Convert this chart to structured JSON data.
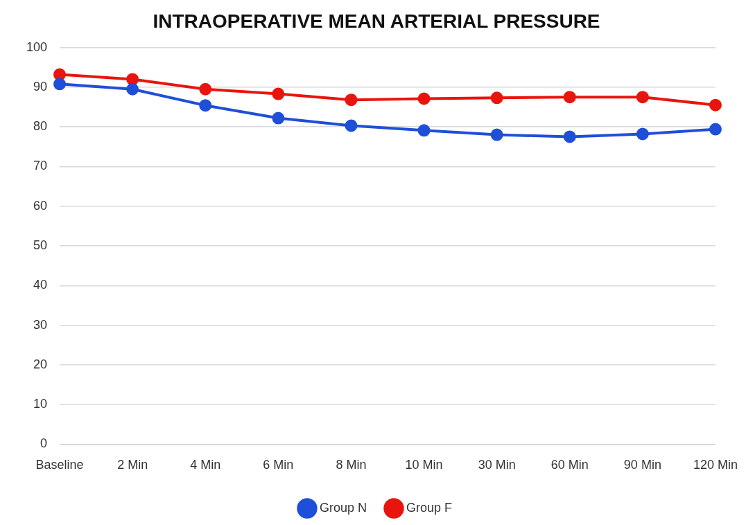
{
  "chart_data": {
    "type": "line",
    "title": "INTRAOPERATIVE MEAN ARTERIAL PRESSURE",
    "categories": [
      "Baseline",
      "2 Min",
      "4 Min",
      "6 Min",
      "8 Min",
      "10 Min",
      "30 Min",
      "60 Min",
      "90 Min",
      "120 Min"
    ],
    "series": [
      {
        "name": "Group N",
        "color": "#1f4fd8",
        "values": [
          90.8,
          89.5,
          85.4,
          82.2,
          80.3,
          79.1,
          78.0,
          77.5,
          78.2,
          79.4
        ]
      },
      {
        "name": "Group F",
        "color": "#e8150e",
        "values": [
          93.2,
          92.0,
          89.5,
          88.3,
          86.8,
          87.1,
          87.3,
          87.5,
          87.5,
          85.5
        ]
      }
    ],
    "ylim": [
      0,
      100
    ],
    "yticks": [
      0,
      10,
      20,
      30,
      40,
      50,
      60,
      70,
      80,
      90,
      100
    ],
    "grid": "y",
    "legend": "bottom",
    "marker": "circle",
    "line_style": "solid"
  }
}
